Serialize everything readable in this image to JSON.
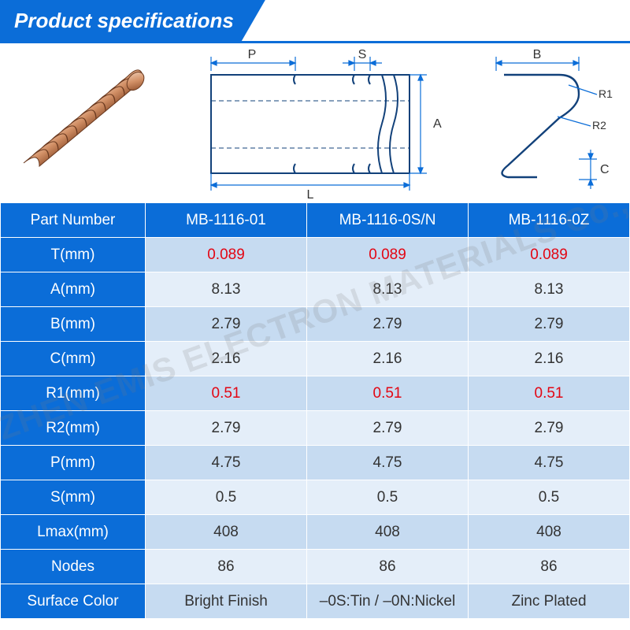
{
  "header": {
    "title": "Product specifications"
  },
  "watermark": "SEHZHEN EMIS ELECTRON MATERIALS Co., LTD",
  "colors": {
    "primary": "#0b6dd8",
    "row_a": "#c6dbf1",
    "row_b": "#e4eef9",
    "red": "#e30613",
    "dim_line": "#0b6dd8",
    "part_outline": "#12417a",
    "copper_light": "#e9c0a3",
    "copper_dark": "#a35a2f"
  },
  "diagram": {
    "labels": {
      "P": "P",
      "S": "S",
      "A": "A",
      "L": "L",
      "B": "B",
      "C": "C",
      "R1": "R1",
      "R2": "R2"
    }
  },
  "table": {
    "columns": [
      "Part Number",
      "MB-1116-01",
      "MB-1116-0S/N",
      "MB-1116-0Z"
    ],
    "rows": [
      {
        "label": "T(mm)",
        "vals": [
          "0.089",
          "0.089",
          "0.089"
        ],
        "red": true,
        "alt": "a"
      },
      {
        "label": "A(mm)",
        "vals": [
          "8.13",
          "8.13",
          "8.13"
        ],
        "red": false,
        "alt": "b"
      },
      {
        "label": "B(mm)",
        "vals": [
          "2.79",
          "2.79",
          "2.79"
        ],
        "red": false,
        "alt": "a"
      },
      {
        "label": "C(mm)",
        "vals": [
          "2.16",
          "2.16",
          "2.16"
        ],
        "red": false,
        "alt": "b"
      },
      {
        "label": "R1(mm)",
        "vals": [
          "0.51",
          "0.51",
          "0.51"
        ],
        "red": true,
        "alt": "a"
      },
      {
        "label": "R2(mm)",
        "vals": [
          "2.79",
          "2.79",
          "2.79"
        ],
        "red": false,
        "alt": "b"
      },
      {
        "label": "P(mm)",
        "vals": [
          "4.75",
          "4.75",
          "4.75"
        ],
        "red": false,
        "alt": "a"
      },
      {
        "label": "S(mm)",
        "vals": [
          "0.5",
          "0.5",
          "0.5"
        ],
        "red": false,
        "alt": "b"
      },
      {
        "label": "Lmax(mm)",
        "vals": [
          "408",
          "408",
          "408"
        ],
        "red": false,
        "alt": "a"
      },
      {
        "label": "Nodes",
        "vals": [
          "86",
          "86",
          "86"
        ],
        "red": false,
        "alt": "b"
      },
      {
        "label": "Surface Color",
        "vals": [
          "Bright Finish",
          "–0S:Tin / –0N:Nickel",
          "Zinc Plated"
        ],
        "red": false,
        "alt": "a"
      }
    ]
  }
}
